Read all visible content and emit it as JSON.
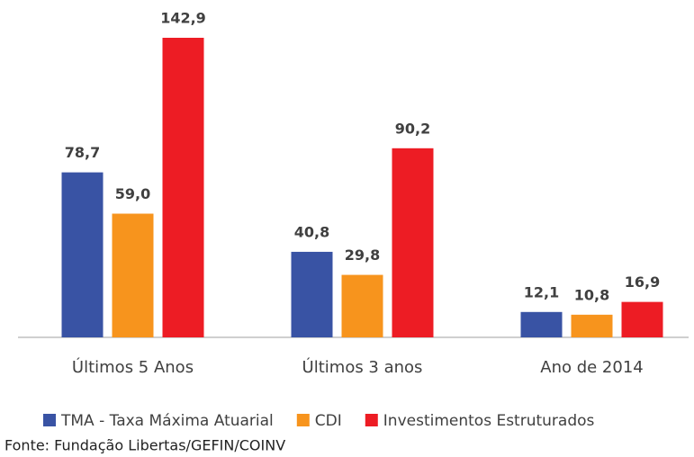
{
  "chart_data": {
    "type": "bar",
    "categories": [
      "Últimos 5 Anos",
      "Últimos 3 anos",
      "Ano de 2014"
    ],
    "series": [
      {
        "name": "TMA - Taxa Máxima Atuarial",
        "color": "#3953a4",
        "values": [
          78.7,
          40.8,
          12.1
        ],
        "value_labels": [
          "78,7",
          "40,8",
          "12,1"
        ]
      },
      {
        "name": "CDI",
        "color": "#f7941d",
        "values": [
          59.0,
          29.8,
          10.8
        ],
        "value_labels": [
          "59,0",
          "29,8",
          "10,8"
        ]
      },
      {
        "name": "Investimentos Estruturados",
        "color": "#ed1c24",
        "values": [
          142.9,
          90.2,
          16.9
        ],
        "value_labels": [
          "142,9",
          "90,2",
          "16,9"
        ]
      }
    ],
    "legend": "bottom",
    "source": "Fonte: Fundação Libertas/GEFIN/COINV"
  }
}
